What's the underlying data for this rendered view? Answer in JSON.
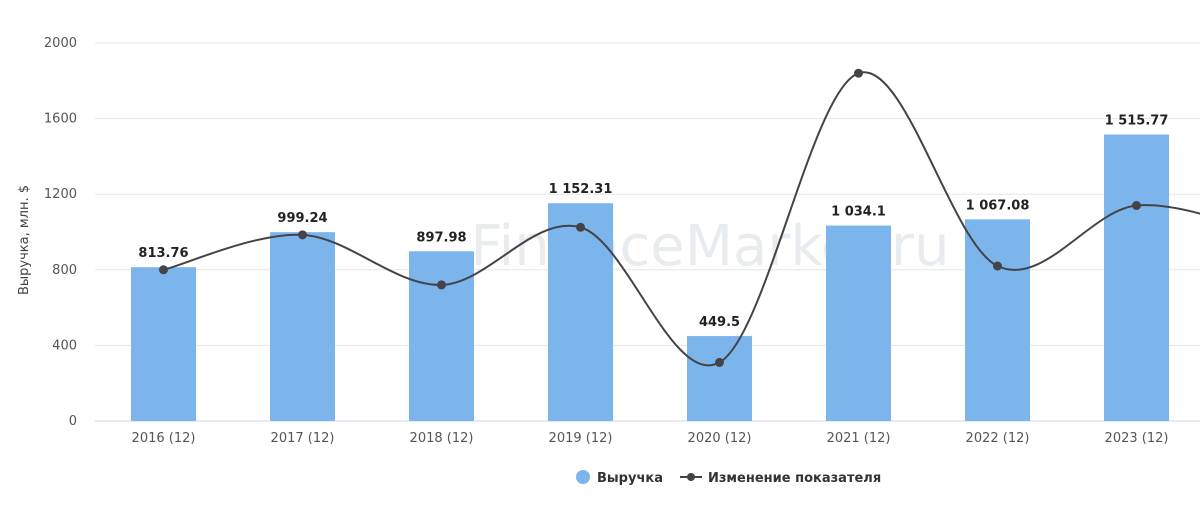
{
  "chart_data": {
    "type": "bar",
    "categories": [
      "2016 (12)",
      "2017 (12)",
      "2018 (12)",
      "2019 (12)",
      "2020 (12)",
      "2021 (12)",
      "2022 (12)",
      "2023 (12)"
    ],
    "series": [
      {
        "name": "Выручка",
        "type": "bar",
        "values": [
          813.76,
          999.24,
          897.98,
          1152.31,
          449.5,
          1034.1,
          1067.08,
          1515.77
        ],
        "labels": [
          "813.76",
          "999.24",
          "897.98",
          "1 152.31",
          "449.5",
          "1 034.1",
          "1 067.08",
          "1 515.77"
        ],
        "color": "#7cb5ec"
      },
      {
        "name": "Изменение показателя",
        "type": "spline",
        "values": [
          800,
          985,
          720,
          1025,
          310,
          1840,
          820,
          1140
        ],
        "color": "#434348"
      }
    ],
    "ylabel": "Выручка, млн. $",
    "xlabel": "",
    "ylim": [
      0,
      2000
    ],
    "yticks": [
      0,
      400,
      800,
      1200,
      1600,
      2000
    ],
    "grid": true,
    "legend_position": "bottom-center",
    "watermark": "FinanceMarker.ru"
  }
}
